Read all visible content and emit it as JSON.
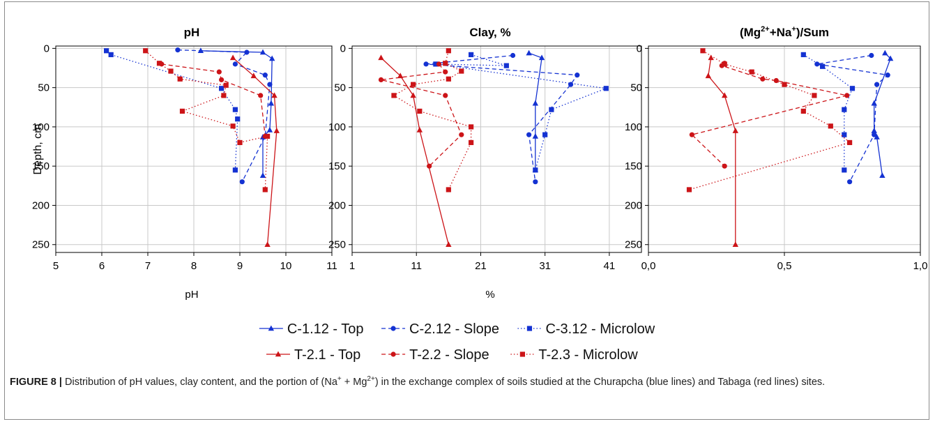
{
  "colors": {
    "blue": "#1432d2",
    "red": "#cc1418",
    "axis": "#000000",
    "grid": "#c8c8c8"
  },
  "ylabel": "Depth, cm",
  "y_ticks": [
    0,
    50,
    100,
    150,
    200,
    250
  ],
  "chart_data": [
    {
      "type": "line",
      "title": "pH",
      "xlabel": "pH",
      "xlim": [
        5,
        11
      ],
      "ylim": [
        260,
        -3
      ],
      "x_ticks": [
        "5",
        "6",
        "7",
        "8",
        "9",
        "10",
        "11"
      ],
      "series": [
        {
          "name": "C-1.12 - Top",
          "color": "blue",
          "marker": "triangle",
          "dash": "solid",
          "x": [
            8.15,
            9.5,
            9.7,
            9.68,
            9.65,
            9.5,
            9.5
          ],
          "y": [
            3,
            5,
            13,
            70,
            104,
            113,
            162
          ]
        },
        {
          "name": "C-2.12 - Slope",
          "color": "blue",
          "marker": "circle",
          "dash": "dashed",
          "x": [
            7.65,
            9.15,
            8.9,
            9.55,
            9.65,
            9.55,
            9.05
          ],
          "y": [
            2,
            5,
            20,
            34,
            46,
            112,
            170
          ]
        },
        {
          "name": "C-3.12 - Microlow",
          "color": "blue",
          "marker": "square",
          "dash": "dotted",
          "x": [
            6.1,
            6.2,
            8.6,
            8.9,
            8.95,
            8.9
          ],
          "y": [
            3,
            8,
            51,
            78,
            90,
            155
          ]
        },
        {
          "name": "T-2.1 - Top",
          "color": "red",
          "marker": "triangle",
          "dash": "solid",
          "x": [
            8.85,
            9.3,
            9.75,
            9.8,
            9.6
          ],
          "y": [
            12,
            35,
            60,
            105,
            250
          ]
        },
        {
          "name": "T-2.2 - Slope",
          "color": "red",
          "marker": "circle",
          "dash": "dashed",
          "x": [
            7.3,
            8.55,
            8.6,
            9.45,
            9.55
          ],
          "y": [
            20,
            30,
            40,
            60,
            112
          ]
        },
        {
          "name": "T-2.3 - Microlow",
          "color": "red",
          "marker": "square",
          "dash": "dotted",
          "x": [
            6.95,
            7.25,
            7.5,
            7.7,
            8.7,
            8.65,
            7.75,
            8.85,
            9.0,
            9.6,
            9.55
          ],
          "y": [
            3,
            19,
            29,
            39,
            47,
            60,
            80,
            99,
            120,
            112,
            180
          ]
        }
      ]
    },
    {
      "type": "line",
      "title": "Clay, %",
      "xlabel": "%",
      "xlim": [
        1,
        46
      ],
      "ylim": [
        260,
        -3
      ],
      "x_ticks": [
        "1",
        "11",
        "21",
        "31",
        "41"
      ],
      "series": [
        {
          "name": "C-1.12 - Top",
          "color": "blue",
          "marker": "triangle",
          "dash": "solid",
          "x": [
            28.5,
            30.5,
            29.5,
            29.5,
            29.5
          ],
          "y": [
            6,
            12,
            70,
            112,
            155
          ]
        },
        {
          "name": "C-2.12 - Slope",
          "color": "blue",
          "marker": "circle",
          "dash": "dashed",
          "x": [
            26.0,
            12.5,
            36.0,
            35.0,
            28.5,
            29.5
          ],
          "y": [
            9,
            20,
            34,
            46,
            110,
            170
          ]
        },
        {
          "name": "C-3.12 - Microlow",
          "color": "blue",
          "marker": "square",
          "dash": "dotted",
          "x": [
            19.5,
            25.0,
            14.0,
            40.5,
            32.0,
            31.0,
            29.5
          ],
          "y": [
            8,
            22,
            20,
            51,
            78,
            110,
            155
          ]
        },
        {
          "name": "T-2.1 - Top",
          "color": "red",
          "marker": "triangle",
          "dash": "solid",
          "x": [
            5.5,
            8.5,
            10.5,
            11.5,
            16.0
          ],
          "y": [
            12,
            35,
            60,
            104,
            250
          ]
        },
        {
          "name": "T-2.2 - Slope",
          "color": "red",
          "marker": "circle",
          "dash": "dashed",
          "x": [
            14.5,
            15.5,
            5.5,
            15.5,
            18.0,
            13.0
          ],
          "y": [
            20,
            30,
            40,
            60,
            110,
            150
          ]
        },
        {
          "name": "T-2.3 - Microlow",
          "color": "red",
          "marker": "square",
          "dash": "dotted",
          "x": [
            16.0,
            15.5,
            18.0,
            16.0,
            10.5,
            7.5,
            11.5,
            19.5,
            19.5,
            16.0
          ],
          "y": [
            3,
            19,
            29,
            39,
            46,
            60,
            80,
            100,
            120,
            180
          ]
        }
      ]
    },
    {
      "type": "line",
      "title": "(Mg2++Na+)/Sum",
      "xlabel": "",
      "xlim": [
        0.0,
        1.0
      ],
      "ylim": [
        260,
        -3
      ],
      "x_ticks": [
        "0,0",
        "0,5",
        "1,0"
      ],
      "series": [
        {
          "name": "C-1.12 - Top",
          "color": "blue",
          "marker": "triangle",
          "dash": "solid",
          "x": [
            0.87,
            0.89,
            0.83,
            0.83,
            0.84,
            0.86
          ],
          "y": [
            6,
            13,
            70,
            105,
            113,
            162
          ]
        },
        {
          "name": "C-2.12 - Slope",
          "color": "blue",
          "marker": "circle",
          "dash": "dashed",
          "x": [
            0.82,
            0.62,
            0.88,
            0.84,
            0.83,
            0.74
          ],
          "y": [
            9,
            20,
            34,
            46,
            110,
            170
          ]
        },
        {
          "name": "C-3.12 - Microlow",
          "color": "blue",
          "marker": "square",
          "dash": "dotted",
          "x": [
            0.57,
            0.64,
            0.75,
            0.72,
            0.72,
            0.72
          ],
          "y": [
            8,
            23,
            51,
            78,
            110,
            155
          ]
        },
        {
          "name": "T-2.1 - Top",
          "color": "red",
          "marker": "triangle",
          "dash": "solid",
          "x": [
            0.23,
            0.22,
            0.28,
            0.32,
            0.32
          ],
          "y": [
            12,
            35,
            60,
            105,
            250
          ]
        },
        {
          "name": "T-2.2 - Slope",
          "color": "red",
          "marker": "circle",
          "dash": "dashed",
          "x": [
            0.28,
            0.27,
            0.42,
            0.47,
            0.73,
            0.16,
            0.28
          ],
          "y": [
            19,
            22,
            39,
            41,
            60,
            110,
            150
          ]
        },
        {
          "name": "T-2.3 - Microlow",
          "color": "red",
          "marker": "square",
          "dash": "dotted",
          "x": [
            0.2,
            0.28,
            0.38,
            0.5,
            0.61,
            0.57,
            0.67,
            0.74,
            0.15
          ],
          "y": [
            3,
            20,
            30,
            46,
            60,
            80,
            99,
            120,
            180
          ]
        }
      ]
    }
  ],
  "legend": {
    "row1": [
      {
        "label": "C-1.12 - Top",
        "color": "blue",
        "marker": "triangle",
        "dash": "solid"
      },
      {
        "label": "C-2.12 - Slope",
        "color": "blue",
        "marker": "circle",
        "dash": "dashed"
      },
      {
        "label": "C-3.12 - Microlow",
        "color": "blue",
        "marker": "square",
        "dash": "dotted"
      }
    ],
    "row2": [
      {
        "label": "T-2.1 - Top",
        "color": "red",
        "marker": "triangle",
        "dash": "solid"
      },
      {
        "label": "T-2.2 - Slope",
        "color": "red",
        "marker": "circle",
        "dash": "dashed"
      },
      {
        "label": "T-2.3 - Microlow",
        "color": "red",
        "marker": "square",
        "dash": "dotted"
      }
    ]
  },
  "caption": {
    "label": "FIGURE 8 |",
    "part1": " Distribution of pH values, clay content, and the portion of (Na",
    "sup1": "+",
    "part2": " + Mg",
    "sup2": "2+",
    "part3": ") in the exchange complex of soils studied at the Churapcha (blue lines) and Tabaga (red lines) sites."
  }
}
